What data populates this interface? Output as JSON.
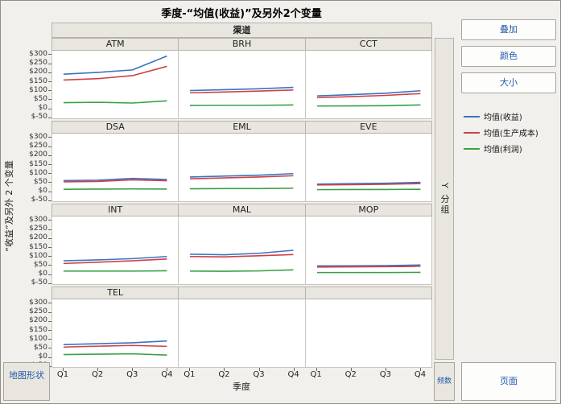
{
  "title": "季度-“均值(收益)”及另外2个变量",
  "group_header": "渠道",
  "axes": {
    "y_label": "“收益”及另外 2 个变量",
    "x_label": "季度"
  },
  "right_panel": {
    "buttons": [
      "叠加",
      "颜色",
      "大小"
    ],
    "y_group_label": "Y 分组",
    "freq_label": "频数",
    "page_label": "页面"
  },
  "bottom_left_button": "地图形状",
  "chart_data": {
    "type": "line",
    "x": [
      "Q1",
      "Q2",
      "Q3",
      "Q4"
    ],
    "ylim": [
      -60,
      320
    ],
    "y_ticks": [
      300,
      250,
      200,
      150,
      100,
      50,
      0,
      -50
    ],
    "y_tick_prefix": "$",
    "grid": false,
    "legend_position": "right",
    "series": [
      {
        "name": "均值(收益)",
        "color": "#3a74c0"
      },
      {
        "name": "均值(生产成本)",
        "color": "#cf4046"
      },
      {
        "name": "均值(利润)",
        "color": "#39a047"
      }
    ],
    "panels": [
      {
        "name": "ATM",
        "values": [
          [
            188,
            198,
            212,
            290
          ],
          [
            155,
            163,
            180,
            232
          ],
          [
            28,
            30,
            26,
            38
          ]
        ]
      },
      {
        "name": "BRH",
        "values": [
          [
            96,
            101,
            106,
            114
          ],
          [
            83,
            88,
            93,
            99
          ],
          [
            12,
            13,
            13,
            15
          ]
        ]
      },
      {
        "name": "CCT",
        "values": [
          [
            66,
            73,
            81,
            95
          ],
          [
            56,
            62,
            69,
            79
          ],
          [
            9,
            10,
            11,
            15
          ]
        ]
      },
      {
        "name": "DSA",
        "values": [
          [
            56,
            58,
            68,
            62
          ],
          [
            49,
            51,
            60,
            55
          ],
          [
            7,
            8,
            9,
            8
          ]
        ]
      },
      {
        "name": "EML",
        "values": [
          [
            76,
            81,
            86,
            95
          ],
          [
            66,
            71,
            76,
            83
          ],
          [
            10,
            11,
            11,
            13
          ]
        ]
      },
      {
        "name": "EVE",
        "values": [
          [
            36,
            39,
            41,
            46
          ],
          [
            31,
            33,
            35,
            39
          ],
          [
            5,
            6,
            6,
            7
          ]
        ]
      },
      {
        "name": "INT",
        "values": [
          [
            71,
            76,
            83,
            95
          ],
          [
            56,
            63,
            71,
            81
          ],
          [
            13,
            13,
            13,
            15
          ]
        ]
      },
      {
        "name": "MAL",
        "values": [
          [
            108,
            105,
            113,
            130
          ],
          [
            95,
            93,
            99,
            106
          ],
          [
            13,
            12,
            14,
            20
          ]
        ]
      },
      {
        "name": "MOP",
        "values": [
          [
            42,
            43,
            44,
            47
          ],
          [
            36,
            37,
            38,
            40
          ],
          [
            5,
            5,
            5,
            6
          ]
        ]
      },
      {
        "name": "TEL",
        "values": [
          [
            66,
            71,
            76,
            86
          ],
          [
            52,
            57,
            61,
            56
          ],
          [
            10,
            12,
            14,
            7
          ]
        ]
      }
    ]
  }
}
